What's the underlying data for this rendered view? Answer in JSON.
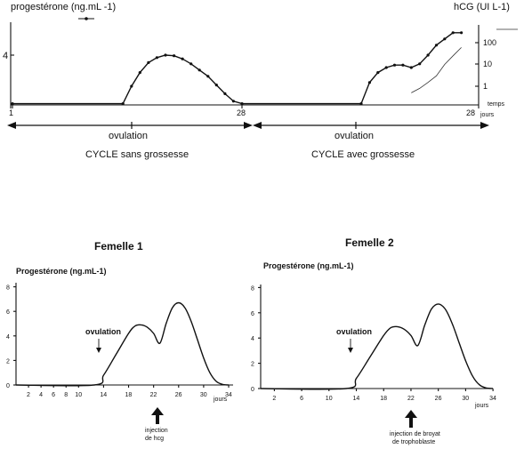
{
  "chart_data": [
    {
      "type": "line",
      "title": "",
      "left_axis_label": "progestérone  (ng.mL -1)",
      "right_axis_label": "hCG (UI L-1)",
      "x_unit_label": "temps\njours",
      "x_ticks": [
        "1",
        "28",
        "28"
      ],
      "y_left_ticks": [
        "4"
      ],
      "y_right_ticks": [
        "100",
        "10",
        "1"
      ],
      "series": [
        {
          "name": "",
          "axis": "progesterone",
          "points": [
            [
              1,
              0.1
            ],
            [
              14,
              0.1
            ],
            [
              15,
              1.5
            ],
            [
              16,
              2.6
            ],
            [
              17,
              3.4
            ],
            [
              18,
              3.8
            ],
            [
              19,
              4.0
            ],
            [
              20,
              3.95
            ],
            [
              21,
              3.7
            ],
            [
              22,
              3.3
            ],
            [
              23,
              2.8
            ],
            [
              24,
              2.3
            ],
            [
              25,
              1.6
            ],
            [
              26,
              0.9
            ],
            [
              27,
              0.3
            ],
            [
              28,
              0.1
            ],
            [
              42,
              0.1
            ],
            [
              43,
              1.8
            ],
            [
              44,
              2.6
            ],
            [
              45,
              3.0
            ],
            [
              46,
              3.2
            ],
            [
              47,
              3.2
            ],
            [
              48,
              3.0
            ],
            [
              49,
              3.3
            ],
            [
              50,
              4.0
            ],
            [
              51,
              4.8
            ],
            [
              52,
              5.3
            ],
            [
              53,
              5.8
            ],
            [
              54,
              5.8
            ]
          ]
        },
        {
          "name": "",
          "axis": "hcg",
          "points": [
            [
              48,
              0.5
            ],
            [
              49,
              0.8
            ],
            [
              50,
              1.5
            ],
            [
              51,
              3
            ],
            [
              52,
              10
            ],
            [
              53,
              25
            ],
            [
              54,
              60
            ]
          ]
        }
      ],
      "annotations": [
        {
          "label": "ovulation",
          "caption": "CYCLE sans grossesse"
        },
        {
          "label": "ovulation",
          "caption": "CYCLE avec grossesse"
        }
      ]
    },
    {
      "type": "line",
      "title": "Femelle 1",
      "ylabel": "Progestérone (ng.mL-1)",
      "xlabel": "jours",
      "xlim": [
        0,
        34
      ],
      "ylim": [
        0,
        8
      ],
      "x_ticks": [
        "2",
        "4",
        "6",
        "8",
        "10",
        "14",
        "18",
        "22",
        "26",
        "30",
        "34"
      ],
      "y_ticks": [
        "0",
        "2",
        "4",
        "6",
        "8"
      ],
      "series": [
        {
          "name": "",
          "points": [
            [
              0,
              0
            ],
            [
              12.5,
              0
            ],
            [
              14,
              0.8
            ],
            [
              16,
              2.5
            ],
            [
              18,
              4.2
            ],
            [
              19,
              4.8
            ],
            [
              20,
              4.9
            ],
            [
              21,
              4.7
            ],
            [
              22,
              4.2
            ],
            [
              23,
              3.4
            ],
            [
              24,
              5
            ],
            [
              25,
              6.3
            ],
            [
              26,
              6.7
            ],
            [
              27,
              6.3
            ],
            [
              28,
              5.2
            ],
            [
              29,
              3.7
            ],
            [
              30,
              2.2
            ],
            [
              31,
              1
            ],
            [
              32,
              0.3
            ],
            [
              33,
              0.05
            ],
            [
              34,
              0
            ]
          ]
        }
      ],
      "annotations": [
        {
          "label": "ovulation",
          "x": 13
        },
        {
          "label": "injection\nde hcg",
          "x": 22.5
        }
      ]
    },
    {
      "type": "line",
      "title": "Femelle 2",
      "ylabel": "Progestérone (ng.mL-1)",
      "xlabel": "jours",
      "xlim": [
        0,
        34
      ],
      "ylim": [
        0,
        8
      ],
      "x_ticks": [
        "2",
        "6",
        "10",
        "14",
        "18",
        "22",
        "26",
        "30",
        "34"
      ],
      "y_ticks": [
        "0",
        "2",
        "4",
        "6",
        "8"
      ],
      "series": [
        {
          "name": "",
          "points": [
            [
              0,
              0
            ],
            [
              12.5,
              0
            ],
            [
              14,
              0.8
            ],
            [
              16,
              2.5
            ],
            [
              18,
              4.2
            ],
            [
              19,
              4.8
            ],
            [
              20,
              4.9
            ],
            [
              21,
              4.7
            ],
            [
              22,
              4.2
            ],
            [
              23,
              3.4
            ],
            [
              24,
              5
            ],
            [
              25,
              6.3
            ],
            [
              26,
              6.7
            ],
            [
              27,
              6.3
            ],
            [
              28,
              5.2
            ],
            [
              29,
              3.7
            ],
            [
              30,
              2.2
            ],
            [
              31,
              1
            ],
            [
              32,
              0.3
            ],
            [
              33,
              0.05
            ],
            [
              34,
              0
            ]
          ]
        }
      ],
      "annotations": [
        {
          "label": "ovulation",
          "x": 13
        },
        {
          "label": "injection de broyat\nde trophoblaste",
          "x": 22.5
        }
      ]
    }
  ]
}
